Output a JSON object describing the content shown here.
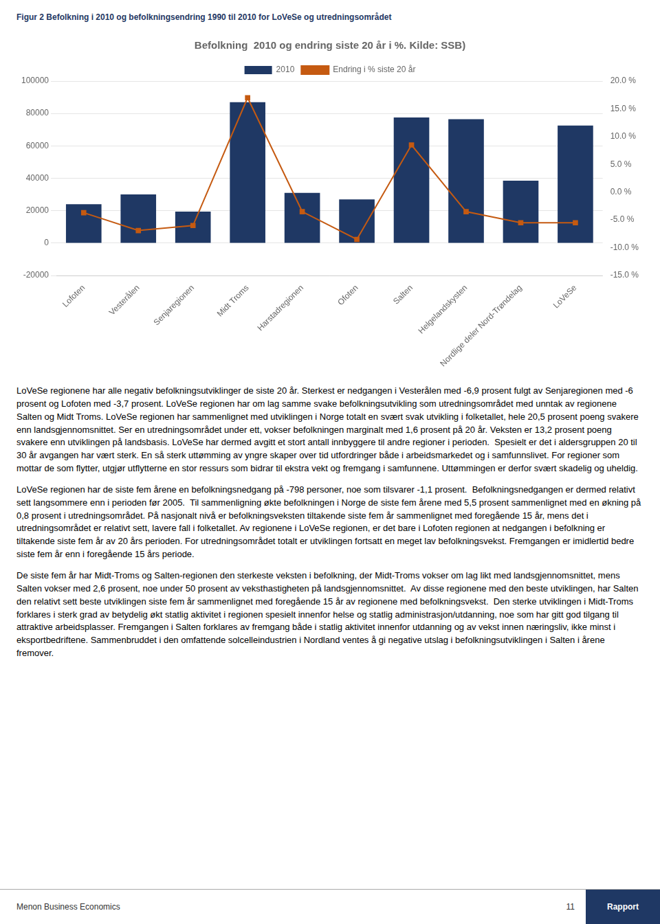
{
  "figure_title": "Figur 2 Befolkning i 2010 og befolkningsendring 1990 til 2010 for LoVeSe og utredningsområdet",
  "chart_data": {
    "type": "bar",
    "title": "Befolkning  2010 og endring siste 20 år i %. Kilde: SSB)",
    "categories": [
      "Lofoten",
      "Vesterålen",
      "Senjaregionen",
      "Midt Troms",
      "Harstadregionen",
      "Ofoten",
      "Salten",
      "Helgelandskysten",
      "Nordlige deler Nord-Trøndelag",
      "LoVeSe"
    ],
    "series": [
      {
        "name": "2010",
        "type": "bar",
        "color": "#1F3864",
        "values": [
          24000,
          30000,
          19500,
          87000,
          31000,
          27000,
          77500,
          76500,
          38500,
          72500
        ]
      },
      {
        "name": "Endring i % siste 20 år",
        "type": "line",
        "axis": "y2",
        "color": "#C55A11",
        "marker": "square",
        "line_style": "solid",
        "values": [
          -3.7,
          -6.9,
          -6.0,
          17.0,
          -3.5,
          -8.5,
          8.5,
          -3.5,
          -5.5,
          -5.5
        ]
      }
    ],
    "ylim": [
      -20000,
      100000
    ],
    "yticks": [
      -20000,
      0,
      20000,
      40000,
      60000,
      80000,
      100000
    ],
    "y2lim": [
      -15.0,
      20.0
    ],
    "y2ticks": [
      {
        "value": -15.0,
        "label": "-15.0 %"
      },
      {
        "value": -10.0,
        "label": "-10.0 %"
      },
      {
        "value": -5.0,
        "label": "-5.0 %"
      },
      {
        "value": 0.0,
        "label": "0.0 %"
      },
      {
        "value": 5.0,
        "label": "5.0 %"
      },
      {
        "value": 10.0,
        "label": "10.0 %"
      },
      {
        "value": 15.0,
        "label": "15.0 %"
      },
      {
        "value": 20.0,
        "label": "20.0 %"
      }
    ],
    "grid": true,
    "legend": "top"
  },
  "body_text": [
    "LoVeSe regionene har alle negativ befolkningsutviklinger de siste 20 år. Sterkest er nedgangen i Vesterålen med -6,9 prosent fulgt av Senjaregionen med -6 prosent og Lofoten med -3,7 prosent. LoVeSe regionen har om lag samme svake befolkningsutvikling som utredningsområdet med unntak av regionene Salten og Midt Troms. LoVeSe regionen har sammenlignet med utviklingen i Norge totalt en svært svak utvikling i folketallet, hele 20,5 prosent poeng svakere enn landsgjennomsnittet. Ser en utredningsområdet under ett, vokser befolkningen marginalt med 1,6 prosent på 20 år. Veksten er 13,2 prosent poeng svakere enn utviklingen på landsbasis. LoVeSe har dermed avgitt et stort antall innbyggere til andre regioner i perioden.  Spesielt er det i aldersgruppen 20 til 30 år avgangen har vært sterk. En så sterk uttømming av yngre skaper over tid utfordringer både i arbeidsmarkedet og i samfunnslivet. For regioner som mottar de som flytter, utgjør utflytterne en stor ressurs som bidrar til ekstra vekt og fremgang i samfunnene. Uttømmingen er derfor svært skadelig og uheldig.",
    "LoVeSe regionen har de siste fem årene en befolkningsnedgang på -798 personer, noe som tilsvarer -1,1 prosent.  Befolkningsnedgangen er dermed relativt sett langsommere enn i perioden før 2005.  Til sammenligning økte befolkningen i Norge de siste fem årene med 5,5 prosent sammenlignet med en økning på 0,8 prosent i utredningsområdet. På nasjonalt nivå er befolkningsveksten tiltakende siste fem år sammenlignet med foregående 15 år, mens det i utredningsområdet er relativt sett, lavere fall i folketallet. Av regionene i LoVeSe regionen, er det bare i Lofoten regionen at nedgangen i befolkning er tiltakende siste fem år av 20 års perioden. For utredningsområdet totalt er utviklingen fortsatt en meget lav befolkningsvekst. Fremgangen er imidlertid bedre siste fem år enn i foregående 15 års periode.",
    "De siste fem år har Midt-Troms og Salten-regionen den sterkeste veksten i befolkning, der Midt-Troms vokser om lag likt med landsgjennomsnittet, mens Salten vokser med 2,6 prosent, noe under 50 prosent av veksthastigheten på landsgjennomsnittet.  Av disse regionene med den beste utviklingen, har Salten den relativt sett beste utviklingen siste fem år sammenlignet med foregående 15 år av regionene med befolkningsvekst.  Den sterke utviklingen i Midt-Troms forklares i sterk grad av betydelig økt statlig aktivitet i regionen spesielt innenfor helse og statlig administrasjon/utdanning, noe som har gitt god tilgang til attraktive arbeidsplasser. Fremgangen i Salten forklares av fremgang både i statlig aktivitet innenfor utdanning og av vekst innen næringsliv, ikke minst i eksportbedriftene. Sammenbruddet i den omfattende solcelleindustrien i Nordland ventes å gi negative utslag i befolkningsutviklingen i Salten i årene fremover."
  ],
  "footer": {
    "left": "Menon Business Economics",
    "page": "11",
    "right": "Rapport",
    "color": "#1F3864"
  }
}
